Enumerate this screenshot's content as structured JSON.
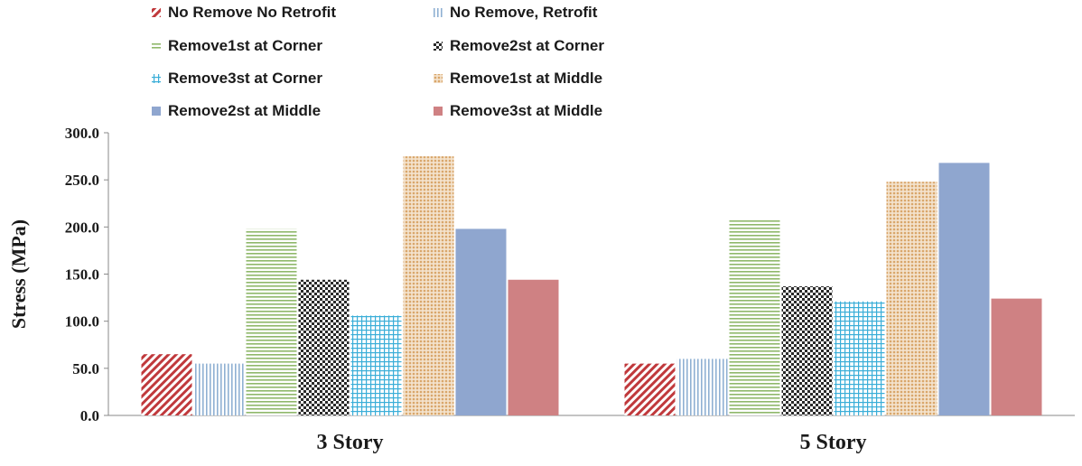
{
  "chart_data": {
    "type": "bar",
    "title": "",
    "xlabel": "",
    "ylabel": "Stress (MPa)",
    "ylim": [
      0,
      300
    ],
    "yticks": [
      "0.0",
      "50.0",
      "100.0",
      "150.0",
      "200.0",
      "250.0",
      "300.0"
    ],
    "grid": false,
    "legend_position": "top",
    "categories": [
      "3 Story",
      "5 Story"
    ],
    "series": [
      {
        "name": "No Remove No Retrofit",
        "values": [
          65,
          55
        ],
        "color": "#c0393c",
        "pattern": "diag"
      },
      {
        "name": "No Remove, Retrofit",
        "values": [
          55,
          60
        ],
        "color": "#8fb0d3",
        "pattern": "vlines"
      },
      {
        "name": "Remove1st at Corner",
        "values": [
          198,
          208
        ],
        "color": "#8fb86a",
        "pattern": "hlines"
      },
      {
        "name": "Remove2st at Corner",
        "values": [
          144,
          137
        ],
        "color": "#2a2a2a",
        "pattern": "checker"
      },
      {
        "name": "Remove3st at Corner",
        "values": [
          106,
          121
        ],
        "color": "#3aaed8",
        "pattern": "grid"
      },
      {
        "name": "Remove1st at Middle",
        "values": [
          275,
          248
        ],
        "color": "#d9a66a",
        "pattern": "dots"
      },
      {
        "name": "Remove2st at Middle",
        "values": [
          198,
          268
        ],
        "color": "#8fa6cf",
        "pattern": "solid"
      },
      {
        "name": "Remove3st at Middle",
        "values": [
          144,
          124
        ],
        "color": "#cf8183",
        "pattern": "solid"
      }
    ]
  }
}
